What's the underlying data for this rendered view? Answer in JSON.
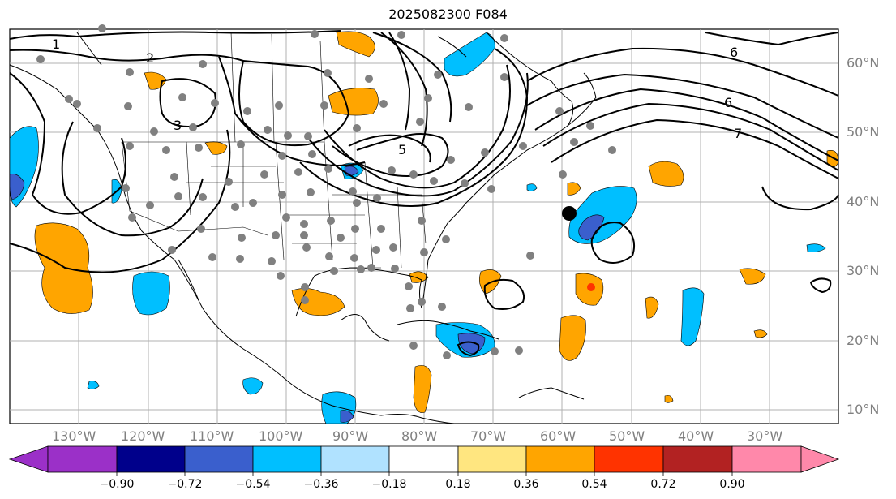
{
  "title": "2025082300 F084",
  "lon_labels": [
    "130°W",
    "120°W",
    "110°W",
    "100°W",
    "90°W",
    "80°W",
    "70°W",
    "60°W",
    "50°W",
    "40°W",
    "30°W"
  ],
  "lat_labels": [
    "60°N",
    "50°N",
    "40°N",
    "30°N",
    "20°N",
    "10°N"
  ],
  "contour_labels": [
    "1",
    "2",
    "3",
    "5",
    "6",
    "6",
    "7"
  ],
  "colorbar": {
    "labels": [
      "−0.90",
      "−0.72",
      "−0.54",
      "−0.36",
      "−0.18",
      "0.18",
      "0.36",
      "0.54",
      "0.72",
      "0.90"
    ],
    "colors": [
      "#9b30c8",
      "#00008b",
      "#3a5fcd",
      "#00bfff",
      "#b0e2ff",
      "#ffffff",
      "#ffe680",
      "#ffa500",
      "#ff3300",
      "#b22222",
      "#ff88aa"
    ]
  },
  "colors": {
    "positive": "#ffa500",
    "negative_light": "#00bfff",
    "negative_mid": "#3a5fcd",
    "station": "#808080",
    "grid": "#b0b0b0"
  }
}
